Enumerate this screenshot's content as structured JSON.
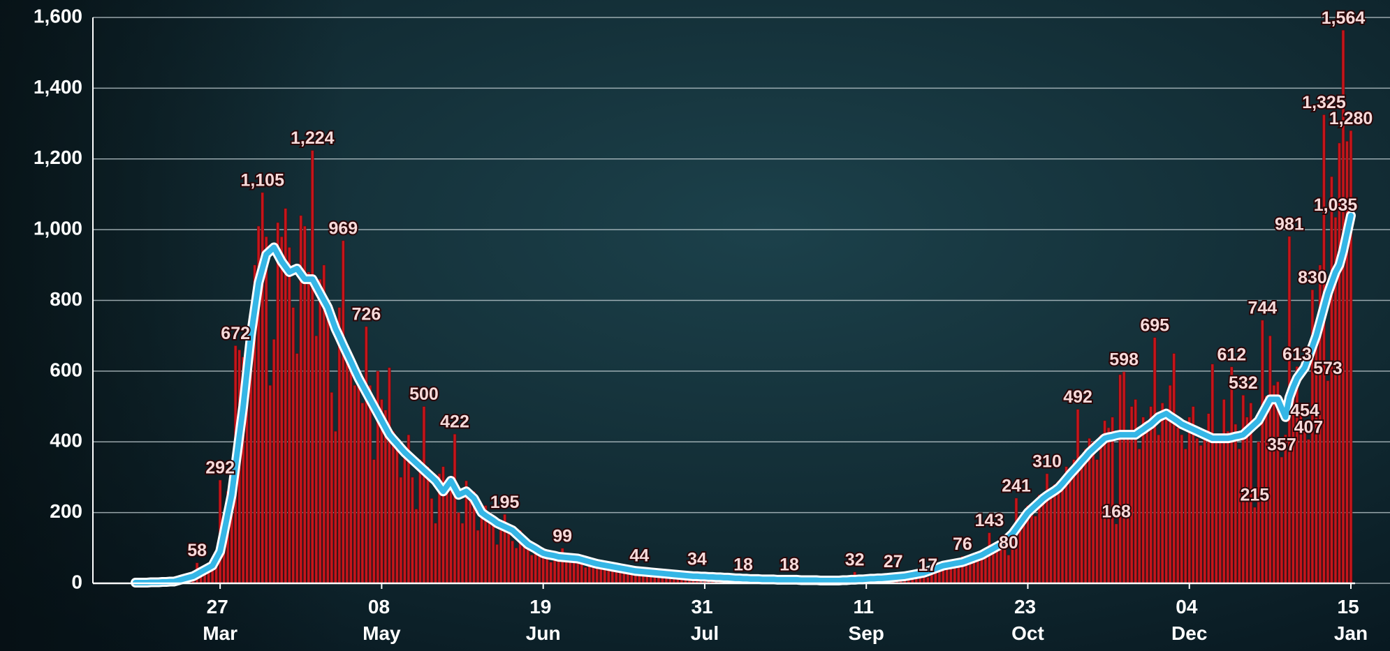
{
  "chart_data": {
    "type": "bar",
    "ylim": [
      0,
      1600
    ],
    "yticks": [
      0,
      200,
      400,
      600,
      800,
      {
        "value": 1000,
        "label": "1,000"
      },
      {
        "value": 1200,
        "label": "1,200"
      },
      {
        "value": 1400,
        "label": "1,400"
      },
      {
        "value": 1600,
        "label": "1,600"
      }
    ],
    "grid": true,
    "categories": [
      null,
      null,
      null,
      null,
      null,
      null,
      null,
      null,
      null,
      null,
      null,
      null,
      null,
      null,
      null,
      null,
      null,
      null,
      null,
      null,
      null,
      null,
      "27 Mar",
      null,
      null,
      null,
      null,
      null,
      null,
      null,
      null,
      null,
      null,
      null,
      null,
      null,
      null,
      null,
      null,
      null,
      null,
      null,
      null,
      null,
      null,
      null,
      null,
      null,
      null,
      null,
      null,
      null,
      null,
      null,
      null,
      null,
      null,
      null,
      null,
      null,
      null,
      null,
      null,
      null,
      "08 May",
      null,
      null,
      null,
      null,
      null,
      null,
      null,
      null,
      null,
      null,
      null,
      null,
      null,
      null,
      null,
      null,
      null,
      null,
      null,
      null,
      null,
      null,
      null,
      null,
      null,
      null,
      null,
      null,
      null,
      null,
      null,
      null,
      null,
      null,
      null,
      null,
      null,
      null,
      null,
      null,
      null,
      "19 Jun",
      null,
      null,
      null,
      null,
      null,
      null,
      null,
      null,
      null,
      null,
      null,
      null,
      null,
      null,
      null,
      null,
      null,
      null,
      null,
      null,
      null,
      null,
      null,
      null,
      null,
      null,
      null,
      null,
      null,
      null,
      null,
      null,
      null,
      null,
      null,
      null,
      null,
      null,
      null,
      null,
      null,
      "31 Jul",
      null,
      null,
      null,
      null,
      null,
      null,
      null,
      null,
      null,
      null,
      null,
      null,
      null,
      null,
      null,
      null,
      null,
      null,
      null,
      null,
      null,
      null,
      null,
      null,
      null,
      null,
      null,
      null,
      null,
      null,
      null,
      null,
      null,
      null,
      null,
      null,
      null,
      null,
      null,
      null,
      null,
      "11 Sep",
      null,
      null,
      null,
      null,
      null,
      null,
      null,
      null,
      null,
      null,
      null,
      null,
      null,
      null,
      null,
      null,
      null,
      null,
      null,
      null,
      null,
      null,
      null,
      null,
      null,
      null,
      null,
      null,
      null,
      null,
      null,
      null,
      null,
      null,
      null,
      null,
      null,
      null,
      null,
      null,
      null,
      "23 Oct",
      null,
      null,
      null,
      null,
      null,
      null,
      null,
      null,
      null,
      null,
      null,
      null,
      null,
      null,
      null,
      null,
      null,
      null,
      null,
      null,
      null,
      null,
      null,
      null,
      null,
      null,
      null,
      null,
      null,
      null,
      null,
      null,
      null,
      null,
      null,
      null,
      null,
      null,
      null,
      null,
      null,
      "04 Dec",
      null,
      null,
      null,
      null,
      null,
      null,
      null,
      null,
      null,
      null,
      null,
      null,
      null,
      null,
      null,
      null,
      null,
      null,
      null,
      null,
      null,
      null,
      null,
      null,
      null,
      null,
      null,
      null,
      null,
      null,
      null,
      null,
      null,
      null,
      null,
      null,
      null,
      null,
      null,
      null,
      null,
      "15 Jan"
    ],
    "series": [
      {
        "type": "bar",
        "color": "#c4161c",
        "values": [
          0,
          1,
          2,
          1,
          3,
          2,
          3,
          5,
          4,
          6,
          5,
          10,
          12,
          14,
          15,
          20,
          58,
          35,
          41,
          48,
          45,
          90,
          292,
          180,
          260,
          210,
          672,
          660,
          640,
          700,
          760,
          900,
          1010,
          1105,
          980,
          560,
          690,
          1020,
          980,
          1060,
          950,
          780,
          650,
          1040,
          1010,
          880,
          1224,
          700,
          860,
          900,
          760,
          540,
          430,
          780,
          969,
          650,
          610,
          560,
          590,
          510,
          726,
          560,
          350,
          600,
          520,
          490,
          610,
          430,
          380,
          300,
          380,
          420,
          300,
          210,
          350,
          500,
          330,
          240,
          170,
          310,
          330,
          260,
          280,
          422,
          200,
          170,
          290,
          250,
          260,
          150,
          210,
          220,
          200,
          170,
          110,
          150,
          195,
          160,
          120,
          100,
          150,
          130,
          100,
          80,
          110,
          85,
          95,
          70,
          60,
          90,
          80,
          99,
          70,
          60,
          75,
          65,
          72,
          45,
          70,
          60,
          55,
          58,
          40,
          42,
          55,
          45,
          35,
          30,
          38,
          40,
          30,
          44,
          33,
          25,
          28,
          38,
          27,
          26,
          29,
          22,
          27,
          25,
          17,
          20,
          25,
          22,
          34,
          18,
          16,
          20,
          16,
          14,
          18,
          13,
          17,
          16,
          12,
          14,
          18,
          13,
          10,
          12,
          14,
          9,
          11,
          13,
          10,
          8,
          11,
          9,
          18,
          8,
          10,
          7,
          9,
          11,
          8,
          9,
          7,
          10,
          6,
          8,
          9,
          7,
          11,
          10,
          12,
          32,
          10,
          9,
          11,
          14,
          12,
          16,
          13,
          17,
          15,
          27,
          19,
          18,
          20,
          25,
          22,
          28,
          30,
          25,
          17,
          40,
          45,
          48,
          55,
          52,
          50,
          60,
          55,
          76,
          62,
          70,
          78,
          71,
          85,
          90,
          143,
          100,
          110,
          118,
          95,
          80,
          160,
          241,
          150,
          190,
          220,
          210,
          190,
          250,
          235,
          310,
          270,
          280,
          290,
          270,
          330,
          300,
          350,
          492,
          340,
          380,
          410,
          400,
          350,
          420,
          460,
          440,
          470,
          168,
          590,
          598,
          430,
          500,
          520,
          380,
          470,
          460,
          500,
          695,
          420,
          510,
          480,
          560,
          650,
          440,
          420,
          380,
          470,
          500,
          410,
          390,
          430,
          480,
          620,
          400,
          420,
          520,
          430,
          612,
          450,
          380,
          532,
          470,
          510,
          215,
          400,
          744,
          530,
          700,
          560,
          570,
          357,
          420,
          981,
          560,
          613,
          480,
          454,
          407,
          830,
          690,
          900,
          1325,
          573,
          1150,
          1035,
          1245,
          1564,
          1250,
          1280
        ],
        "value_labels": [
          null,
          null,
          null,
          null,
          null,
          null,
          null,
          null,
          null,
          null,
          null,
          null,
          null,
          null,
          null,
          null,
          "58",
          null,
          null,
          null,
          null,
          null,
          "292",
          null,
          null,
          null,
          "672",
          null,
          null,
          null,
          null,
          null,
          null,
          "1,105",
          null,
          null,
          null,
          null,
          null,
          null,
          null,
          null,
          null,
          null,
          null,
          null,
          "1,224",
          null,
          null,
          null,
          null,
          null,
          null,
          null,
          "969",
          null,
          null,
          null,
          null,
          null,
          "726",
          null,
          null,
          null,
          null,
          null,
          null,
          null,
          null,
          null,
          null,
          null,
          null,
          null,
          null,
          "500",
          null,
          null,
          null,
          null,
          null,
          null,
          null,
          "422",
          null,
          null,
          null,
          null,
          null,
          null,
          null,
          null,
          null,
          null,
          null,
          null,
          "195",
          null,
          null,
          null,
          null,
          null,
          null,
          null,
          null,
          null,
          null,
          null,
          null,
          null,
          null,
          "99",
          null,
          null,
          null,
          null,
          null,
          null,
          null,
          null,
          null,
          null,
          null,
          null,
          null,
          null,
          null,
          null,
          null,
          null,
          null,
          "44",
          null,
          null,
          null,
          null,
          null,
          null,
          null,
          null,
          null,
          null,
          null,
          null,
          null,
          null,
          "34",
          null,
          null,
          null,
          null,
          null,
          null,
          null,
          null,
          null,
          null,
          null,
          "18",
          null,
          null,
          null,
          null,
          null,
          null,
          null,
          null,
          null,
          null,
          null,
          "18",
          null,
          null,
          null,
          null,
          null,
          null,
          null,
          null,
          null,
          null,
          null,
          null,
          null,
          null,
          null,
          null,
          "32",
          null,
          null,
          null,
          null,
          null,
          null,
          null,
          null,
          null,
          "27",
          null,
          null,
          null,
          null,
          null,
          null,
          null,
          null,
          "17",
          null,
          null,
          null,
          null,
          null,
          null,
          null,
          null,
          "76",
          null,
          null,
          null,
          null,
          null,
          null,
          "143",
          null,
          null,
          null,
          null,
          "80",
          null,
          "241",
          null,
          null,
          null,
          null,
          null,
          null,
          null,
          "310",
          null,
          null,
          null,
          null,
          null,
          null,
          null,
          "492",
          null,
          null,
          null,
          null,
          null,
          null,
          null,
          null,
          null,
          "168",
          null,
          "598",
          null,
          null,
          null,
          null,
          null,
          null,
          null,
          "695",
          null,
          null,
          null,
          null,
          null,
          null,
          null,
          null,
          null,
          null,
          null,
          null,
          null,
          null,
          null,
          null,
          null,
          null,
          null,
          "612",
          null,
          null,
          "532",
          null,
          null,
          "215",
          null,
          "744",
          null,
          null,
          null,
          null,
          "357",
          null,
          "981",
          null,
          "613",
          null,
          "454",
          "407",
          "830",
          null,
          null,
          "1,325",
          "573",
          null,
          "1,035",
          null,
          "1,564",
          null,
          "1,280"
        ]
      },
      {
        "type": "line",
        "color": "#35b6e6",
        "values": [
          2,
          2,
          2,
          2,
          3,
          3,
          3,
          4,
          4,
          5,
          5,
          8,
          11,
          14,
          17,
          20,
          26,
          32,
          38,
          44,
          50,
          70,
          90,
          143,
          197,
          250,
          333,
          417,
          500,
          600,
          700,
          775,
          850,
          890,
          930,
          940,
          950,
          930,
          910,
          895,
          880,
          885,
          890,
          875,
          860,
          860,
          860,
          840,
          820,
          800,
          780,
          750,
          720,
          697,
          673,
          650,
          627,
          603,
          580,
          560,
          540,
          520,
          500,
          480,
          460,
          440,
          420,
          407,
          395,
          382,
          370,
          360,
          350,
          340,
          330,
          320,
          310,
          300,
          290,
          275,
          260,
          275,
          290,
          270,
          250,
          255,
          260,
          250,
          240,
          220,
          200,
          192,
          185,
          178,
          170,
          165,
          160,
          155,
          150,
          140,
          130,
          120,
          110,
          104,
          98,
          91,
          85,
          82,
          80,
          78,
          75,
          74,
          73,
          72,
          71,
          70,
          67,
          64,
          61,
          58,
          55,
          53,
          51,
          49,
          47,
          45,
          43,
          41,
          39,
          37,
          35,
          34,
          33,
          32,
          31,
          30,
          29,
          28,
          27,
          26,
          25,
          24,
          23,
          22,
          21,
          20,
          20,
          19,
          19,
          18,
          18,
          17,
          17,
          16,
          16,
          15,
          14,
          14,
          13,
          13,
          12,
          12,
          12,
          11,
          11,
          11,
          11,
          10,
          10,
          10,
          10,
          10,
          10,
          9,
          9,
          9,
          9,
          9,
          8,
          8,
          8,
          8,
          8,
          8,
          9,
          9,
          10,
          10,
          11,
          11,
          12,
          13,
          13,
          14,
          14,
          15,
          16,
          17,
          18,
          19,
          20,
          22,
          24,
          26,
          28,
          30,
          34,
          38,
          42,
          46,
          50,
          52,
          54,
          56,
          58,
          60,
          64,
          68,
          72,
          76,
          80,
          86,
          92,
          98,
          104,
          110,
          120,
          130,
          140,
          155,
          170,
          185,
          200,
          210,
          220,
          230,
          240,
          248,
          255,
          262,
          270,
          282,
          295,
          308,
          320,
          332,
          345,
          357,
          370,
          380,
          390,
          400,
          410,
          413,
          415,
          418,
          420,
          420,
          420,
          420,
          420,
          428,
          435,
          443,
          450,
          460,
          470,
          475,
          480,
          472,
          465,
          458,
          450,
          445,
          440,
          435,
          430,
          425,
          420,
          415,
          410,
          410,
          410,
          410,
          410,
          412,
          415,
          417,
          420,
          430,
          440,
          450,
          460,
          480,
          500,
          520,
          520,
          520,
          495,
          470,
          525,
          555,
          580,
          595,
          610,
          640,
          670,
          700,
          740,
          780,
          820,
          850,
          880,
          900,
          940,
          990,
          1040
        ]
      }
    ]
  }
}
